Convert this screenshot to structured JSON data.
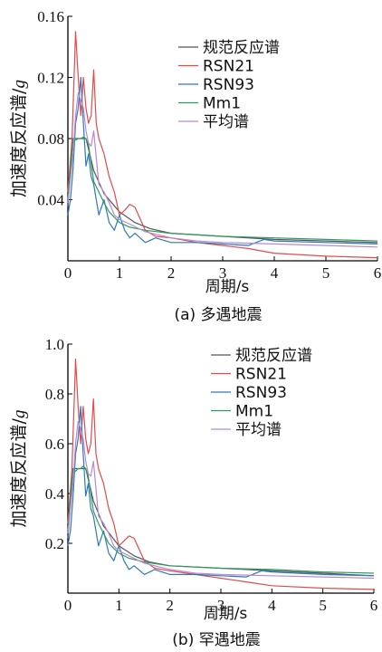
{
  "chart_data": [
    {
      "type": "line",
      "caption": "(a) 多遇地震",
      "xlabel": "周期/s",
      "ylabel_prefix": "加速度反应谱/",
      "ylabel_unit": "g",
      "xlim": [
        0,
        6
      ],
      "ylim": [
        0,
        0.16
      ],
      "xticks": [
        "0",
        "1",
        "2",
        "3",
        "4",
        "5",
        "6"
      ],
      "yticks": [
        "0.04",
        "0.08",
        "0.12",
        "0.16"
      ],
      "yticks_values": [
        0.04,
        0.08,
        0.12,
        0.16
      ],
      "legend_position": "top-right",
      "series": [
        {
          "name": "规范反应谱",
          "color": "#555555",
          "x": [
            0,
            0.1,
            0.15,
            0.35,
            0.5,
            0.7,
            1.0,
            1.3,
            1.6,
            2.0,
            3.0,
            4.0,
            5.0,
            6.0
          ],
          "y": [
            0.036,
            0.08,
            0.08,
            0.08,
            0.059,
            0.044,
            0.032,
            0.025,
            0.021,
            0.018,
            0.016,
            0.014,
            0.013,
            0.012
          ]
        },
        {
          "name": "RSN21",
          "color": "#e04b4b",
          "x": [
            0,
            0.08,
            0.15,
            0.2,
            0.25,
            0.3,
            0.35,
            0.4,
            0.45,
            0.5,
            0.55,
            0.6,
            0.7,
            0.8,
            0.9,
            1.0,
            1.1,
            1.2,
            1.3,
            1.5,
            1.7,
            2.0,
            2.5,
            3.0,
            3.5,
            4.0,
            5.0,
            6.0
          ],
          "y": [
            0.045,
            0.08,
            0.15,
            0.12,
            0.095,
            0.12,
            0.1,
            0.09,
            0.095,
            0.125,
            0.09,
            0.08,
            0.07,
            0.055,
            0.045,
            0.03,
            0.033,
            0.037,
            0.035,
            0.02,
            0.016,
            0.015,
            0.012,
            0.01,
            0.008,
            0.005,
            0.003,
            0.002
          ]
        },
        {
          "name": "RSN93",
          "color": "#2f78b8",
          "x": [
            0,
            0.05,
            0.1,
            0.15,
            0.2,
            0.25,
            0.3,
            0.35,
            0.4,
            0.45,
            0.5,
            0.6,
            0.7,
            0.8,
            0.9,
            1.0,
            1.1,
            1.2,
            1.3,
            1.5,
            1.7,
            2.0,
            2.5,
            3.0,
            3.5,
            3.8,
            4.0,
            5.0,
            6.0
          ],
          "y": [
            0.03,
            0.04,
            0.06,
            0.09,
            0.1,
            0.12,
            0.09,
            0.062,
            0.07,
            0.055,
            0.05,
            0.03,
            0.04,
            0.025,
            0.02,
            0.03,
            0.02,
            0.015,
            0.018,
            0.012,
            0.015,
            0.012,
            0.012,
            0.011,
            0.01,
            0.014,
            0.013,
            0.012,
            0.011
          ]
        },
        {
          "name": "Mm1",
          "color": "#2c9a5c",
          "x": [
            0,
            0.1,
            0.15,
            0.2,
            0.25,
            0.3,
            0.35,
            0.4,
            0.5,
            0.6,
            0.7,
            0.8,
            1.0,
            1.2,
            1.5,
            2.0,
            3.0,
            4.0,
            5.0,
            6.0
          ],
          "y": [
            0.04,
            0.08,
            0.079,
            0.08,
            0.08,
            0.081,
            0.08,
            0.076,
            0.052,
            0.045,
            0.038,
            0.032,
            0.025,
            0.022,
            0.02,
            0.018,
            0.016,
            0.015,
            0.014,
            0.013
          ]
        },
        {
          "name": "平均谱",
          "color": "#b48ad6",
          "x": [
            0,
            0.1,
            0.15,
            0.2,
            0.25,
            0.3,
            0.35,
            0.4,
            0.45,
            0.5,
            0.6,
            0.7,
            0.8,
            0.9,
            1.0,
            1.2,
            1.5,
            2.0,
            2.5,
            3.0,
            4.0,
            5.0,
            6.0
          ],
          "y": [
            0.038,
            0.07,
            0.095,
            0.11,
            0.105,
            0.1,
            0.085,
            0.077,
            0.075,
            0.085,
            0.05,
            0.045,
            0.038,
            0.03,
            0.027,
            0.024,
            0.019,
            0.015,
            0.013,
            0.012,
            0.011,
            0.01,
            0.009
          ]
        }
      ]
    },
    {
      "type": "line",
      "caption": "(b) 罕遇地震",
      "xlabel": "周期/s",
      "ylabel_prefix": "加速度反应谱/",
      "ylabel_unit": "g",
      "xlim": [
        0,
        6
      ],
      "ylim": [
        0,
        1.0
      ],
      "xticks": [
        "0",
        "1",
        "2",
        "3",
        "4",
        "5",
        "6"
      ],
      "yticks": [
        "0.2",
        "0.4",
        "0.6",
        "0.8",
        "1.0"
      ],
      "yticks_values": [
        0.2,
        0.4,
        0.6,
        0.8,
        1.0
      ],
      "legend_position": "top-right",
      "series": [
        {
          "name": "规范反应谱",
          "color": "#555555",
          "x": [
            0,
            0.1,
            0.15,
            0.35,
            0.5,
            0.7,
            1.0,
            1.3,
            1.6,
            2.0,
            3.0,
            4.0,
            5.0,
            6.0
          ],
          "y": [
            0.22,
            0.5,
            0.5,
            0.5,
            0.37,
            0.27,
            0.19,
            0.15,
            0.125,
            0.11,
            0.1,
            0.09,
            0.08,
            0.07
          ]
        },
        {
          "name": "RSN21",
          "color": "#e04b4b",
          "x": [
            0,
            0.08,
            0.15,
            0.2,
            0.25,
            0.3,
            0.35,
            0.4,
            0.45,
            0.5,
            0.55,
            0.6,
            0.7,
            0.8,
            0.9,
            1.0,
            1.1,
            1.2,
            1.3,
            1.5,
            1.7,
            2.0,
            2.5,
            3.0,
            3.5,
            4.0,
            5.0,
            6.0
          ],
          "y": [
            0.28,
            0.5,
            0.94,
            0.75,
            0.6,
            0.75,
            0.62,
            0.56,
            0.6,
            0.78,
            0.56,
            0.5,
            0.44,
            0.34,
            0.28,
            0.19,
            0.21,
            0.23,
            0.22,
            0.13,
            0.1,
            0.09,
            0.075,
            0.06,
            0.045,
            0.03,
            0.02,
            0.015
          ]
        },
        {
          "name": "RSN93",
          "color": "#2f78b8",
          "x": [
            0,
            0.05,
            0.1,
            0.15,
            0.2,
            0.25,
            0.3,
            0.35,
            0.4,
            0.45,
            0.5,
            0.6,
            0.7,
            0.8,
            0.9,
            1.0,
            1.1,
            1.2,
            1.3,
            1.5,
            1.7,
            2.0,
            2.5,
            3.0,
            3.5,
            3.8,
            4.0,
            5.0,
            6.0
          ],
          "y": [
            0.19,
            0.25,
            0.38,
            0.56,
            0.62,
            0.75,
            0.56,
            0.39,
            0.44,
            0.34,
            0.31,
            0.19,
            0.25,
            0.16,
            0.13,
            0.19,
            0.13,
            0.095,
            0.11,
            0.075,
            0.095,
            0.075,
            0.075,
            0.07,
            0.065,
            0.09,
            0.085,
            0.075,
            0.07
          ]
        },
        {
          "name": "Mm1",
          "color": "#2c9a5c",
          "x": [
            0,
            0.1,
            0.15,
            0.2,
            0.25,
            0.3,
            0.35,
            0.4,
            0.5,
            0.6,
            0.7,
            0.8,
            1.0,
            1.2,
            1.5,
            2.0,
            3.0,
            4.0,
            5.0,
            6.0
          ],
          "y": [
            0.25,
            0.5,
            0.49,
            0.5,
            0.5,
            0.51,
            0.5,
            0.47,
            0.33,
            0.28,
            0.24,
            0.2,
            0.16,
            0.14,
            0.125,
            0.11,
            0.1,
            0.095,
            0.085,
            0.08
          ]
        },
        {
          "name": "平均谱",
          "color": "#b48ad6",
          "x": [
            0,
            0.1,
            0.15,
            0.2,
            0.25,
            0.3,
            0.35,
            0.4,
            0.45,
            0.5,
            0.6,
            0.7,
            0.8,
            0.9,
            1.0,
            1.2,
            1.5,
            2.0,
            2.5,
            3.0,
            4.0,
            5.0,
            6.0
          ],
          "y": [
            0.24,
            0.44,
            0.6,
            0.69,
            0.66,
            0.62,
            0.53,
            0.48,
            0.47,
            0.53,
            0.31,
            0.28,
            0.24,
            0.19,
            0.17,
            0.15,
            0.12,
            0.095,
            0.08,
            0.075,
            0.07,
            0.065,
            0.06
          ]
        }
      ]
    }
  ]
}
